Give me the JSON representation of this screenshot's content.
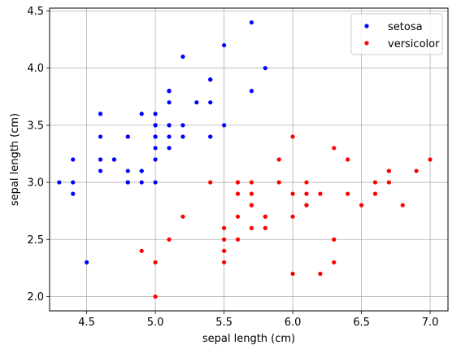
{
  "chart_data": {
    "type": "scatter",
    "title": "",
    "xlabel": "sepal length (cm)",
    "ylabel": "sepal length (cm)",
    "xlim": [
      4.23,
      7.13
    ],
    "ylim": [
      1.875,
      4.525
    ],
    "xticks": [
      4.5,
      5.0,
      5.5,
      6.0,
      6.5,
      7.0
    ],
    "xtick_labels": [
      "4.5",
      "5.0",
      "5.5",
      "6.0",
      "6.5",
      "7.0"
    ],
    "yticks": [
      2.0,
      2.5,
      3.0,
      3.5,
      4.0,
      4.5
    ],
    "ytick_labels": [
      "2.0",
      "2.5",
      "3.0",
      "3.5",
      "4.0",
      "4.5"
    ],
    "grid": true,
    "legend_position": "top-right",
    "series": [
      {
        "name": "setosa",
        "color": "#0000ff",
        "points": [
          [
            5.1,
            3.5
          ],
          [
            4.9,
            3.0
          ],
          [
            4.7,
            3.2
          ],
          [
            4.6,
            3.1
          ],
          [
            5.0,
            3.6
          ],
          [
            5.4,
            3.9
          ],
          [
            4.6,
            3.4
          ],
          [
            5.0,
            3.4
          ],
          [
            4.4,
            2.9
          ],
          [
            4.9,
            3.1
          ],
          [
            5.4,
            3.7
          ],
          [
            4.8,
            3.4
          ],
          [
            4.8,
            3.0
          ],
          [
            4.3,
            3.0
          ],
          [
            5.8,
            4.0
          ],
          [
            5.7,
            4.4
          ],
          [
            5.4,
            3.9
          ],
          [
            5.1,
            3.5
          ],
          [
            5.7,
            3.8
          ],
          [
            5.1,
            3.8
          ],
          [
            5.4,
            3.4
          ],
          [
            5.1,
            3.7
          ],
          [
            4.6,
            3.6
          ],
          [
            5.1,
            3.3
          ],
          [
            4.8,
            3.4
          ],
          [
            5.0,
            3.0
          ],
          [
            5.0,
            3.4
          ],
          [
            5.2,
            3.5
          ],
          [
            5.2,
            3.4
          ],
          [
            4.7,
            3.2
          ],
          [
            4.8,
            3.1
          ],
          [
            5.4,
            3.4
          ],
          [
            5.2,
            4.1
          ],
          [
            5.5,
            4.2
          ],
          [
            4.9,
            3.1
          ],
          [
            5.0,
            3.2
          ],
          [
            5.5,
            3.5
          ],
          [
            4.9,
            3.6
          ],
          [
            4.4,
            3.0
          ],
          [
            5.1,
            3.4
          ],
          [
            5.0,
            3.5
          ],
          [
            4.5,
            2.3
          ],
          [
            4.4,
            3.2
          ],
          [
            5.0,
            3.5
          ],
          [
            5.1,
            3.8
          ],
          [
            4.8,
            3.0
          ],
          [
            5.1,
            3.8
          ],
          [
            4.6,
            3.2
          ],
          [
            5.3,
            3.7
          ],
          [
            5.0,
            3.3
          ]
        ]
      },
      {
        "name": "versicolor",
        "color": "#ff0000",
        "points": [
          [
            7.0,
            3.2
          ],
          [
            6.4,
            3.2
          ],
          [
            6.9,
            3.1
          ],
          [
            5.5,
            2.3
          ],
          [
            6.5,
            2.8
          ],
          [
            5.7,
            2.8
          ],
          [
            6.3,
            3.3
          ],
          [
            4.9,
            2.4
          ],
          [
            6.6,
            2.9
          ],
          [
            5.2,
            2.7
          ],
          [
            5.0,
            2.0
          ],
          [
            5.9,
            3.0
          ],
          [
            6.0,
            2.2
          ],
          [
            6.1,
            2.9
          ],
          [
            5.6,
            2.9
          ],
          [
            6.7,
            3.1
          ],
          [
            5.6,
            3.0
          ],
          [
            5.8,
            2.7
          ],
          [
            6.2,
            2.2
          ],
          [
            5.6,
            2.5
          ],
          [
            5.9,
            3.2
          ],
          [
            6.1,
            2.8
          ],
          [
            6.3,
            2.5
          ],
          [
            6.1,
            2.8
          ],
          [
            6.4,
            2.9
          ],
          [
            6.6,
            3.0
          ],
          [
            6.8,
            2.8
          ],
          [
            6.7,
            3.0
          ],
          [
            6.0,
            2.9
          ],
          [
            5.7,
            2.6
          ],
          [
            5.5,
            2.4
          ],
          [
            5.5,
            2.4
          ],
          [
            5.8,
            2.7
          ],
          [
            6.0,
            2.7
          ],
          [
            5.4,
            3.0
          ],
          [
            6.0,
            3.4
          ],
          [
            6.7,
            3.1
          ],
          [
            6.3,
            2.3
          ],
          [
            5.6,
            3.0
          ],
          [
            5.5,
            2.5
          ],
          [
            5.5,
            2.6
          ],
          [
            6.1,
            3.0
          ],
          [
            5.8,
            2.6
          ],
          [
            5.0,
            2.3
          ],
          [
            5.6,
            2.7
          ],
          [
            5.7,
            3.0
          ],
          [
            5.7,
            2.9
          ],
          [
            6.2,
            2.9
          ],
          [
            5.1,
            2.5
          ],
          [
            5.7,
            2.8
          ]
        ]
      }
    ]
  }
}
